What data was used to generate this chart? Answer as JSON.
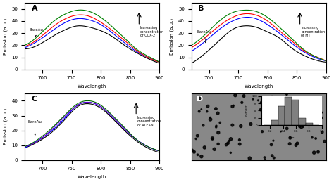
{
  "wavelength_A": [
    670,
    700,
    720,
    740,
    760,
    780,
    800,
    820,
    840,
    860,
    880,
    900
  ],
  "curves_A": {
    "black": [
      17,
      22,
      28,
      33,
      36,
      35,
      32,
      27,
      20,
      14,
      9,
      5
    ],
    "blue": [
      18,
      26,
      33,
      39,
      42,
      41,
      37,
      30,
      22,
      15,
      10,
      6
    ],
    "red": [
      19,
      28,
      36,
      42,
      45,
      44,
      39,
      32,
      24,
      16,
      10,
      6
    ],
    "green": [
      20,
      31,
      40,
      46,
      49,
      48,
      43,
      35,
      26,
      17,
      11,
      6
    ]
  },
  "wavelength_B": [
    670,
    700,
    720,
    740,
    760,
    780,
    800,
    820,
    840,
    860,
    880,
    900
  ],
  "curves_B": {
    "black": [
      5,
      16,
      25,
      33,
      36,
      35,
      31,
      26,
      18,
      12,
      8,
      6
    ],
    "blue": [
      15,
      26,
      34,
      40,
      43,
      42,
      37,
      30,
      22,
      15,
      10,
      7
    ],
    "red": [
      18,
      29,
      37,
      43,
      46,
      45,
      40,
      32,
      24,
      16,
      11,
      7
    ],
    "green": [
      20,
      32,
      41,
      47,
      49,
      48,
      43,
      35,
      26,
      17,
      11,
      7
    ]
  },
  "wavelength_C": [
    670,
    700,
    720,
    740,
    760,
    780,
    800,
    820,
    840,
    860,
    880,
    900
  ],
  "curves_C": {
    "black": [
      8,
      14,
      20,
      28,
      36,
      38,
      35,
      28,
      20,
      13,
      8,
      5
    ],
    "blue": [
      8,
      15,
      21,
      29,
      37,
      39,
      36,
      29,
      21,
      14,
      9,
      6
    ],
    "purple": [
      9,
      15,
      22,
      30,
      37,
      39,
      36,
      29,
      21,
      14,
      9,
      6
    ],
    "darkgreen": [
      9,
      16,
      23,
      31,
      38,
      40,
      37,
      30,
      22,
      14,
      9,
      6
    ]
  },
  "panel_labels": [
    "A",
    "B",
    "C",
    "D"
  ],
  "xlabel": "Wavelength",
  "ylabel": "Emission (a.u.)",
  "xlim_ABC": [
    670,
    900
  ],
  "ylim_A": [
    0,
    55
  ],
  "ylim_B": [
    0,
    55
  ],
  "ylim_C": [
    0,
    45
  ],
  "xticks_ABC": [
    700,
    750,
    800,
    850,
    900
  ],
  "yticks_A": [
    0,
    10,
    20,
    30,
    40,
    50
  ],
  "yticks_B": [
    0,
    10,
    20,
    30,
    40,
    50
  ],
  "yticks_C": [
    0,
    10,
    20,
    30,
    40
  ],
  "annotation_A": "Increasing\nconcentration\nof COX-2",
  "annotation_B": "Increasing\nconcentration\nof MT",
  "annotation_C": "Increasing\nconcentration\nof ALEAN",
  "bare_label": "BareAu",
  "background_color": "#ffffff",
  "colors_C_hex": [
    "black",
    "blue",
    "#6600cc",
    "#006600"
  ]
}
